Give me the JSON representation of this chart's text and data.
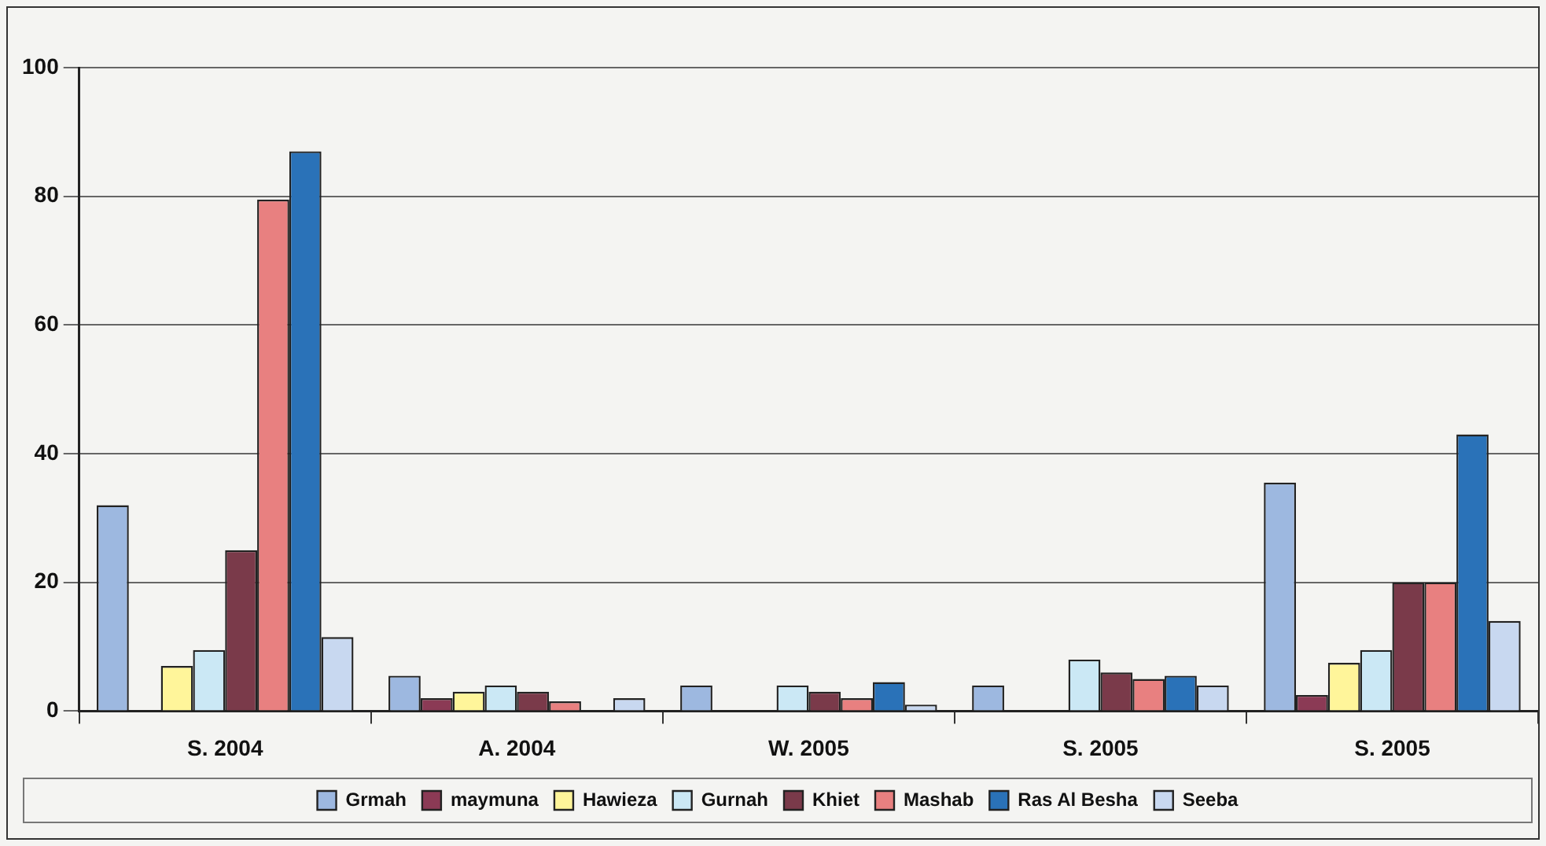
{
  "chart_data": {
    "type": "bar",
    "categories": [
      "S. 2004",
      "A. 2004",
      "W. 2005",
      "S. 2005",
      "S. 2005"
    ],
    "series": [
      {
        "name": "Grmah",
        "color": "#9db8e0",
        "values": [
          32,
          5.5,
          4,
          4,
          35.5
        ]
      },
      {
        "name": "maymuna",
        "color": "#8b3a55",
        "values": [
          0,
          2,
          0,
          0,
          2.5
        ]
      },
      {
        "name": "Hawieza",
        "color": "#fff59a",
        "values": [
          7,
          3,
          0,
          0,
          7.5
        ]
      },
      {
        "name": "Gurnah",
        "color": "#cbe8f5",
        "values": [
          9.5,
          4,
          4,
          8,
          9.5
        ]
      },
      {
        "name": "Khiet",
        "color": "#7a3a4a",
        "values": [
          25,
          3,
          3,
          6,
          20
        ]
      },
      {
        "name": "Mashab",
        "color": "#e88080",
        "values": [
          79.5,
          1.5,
          2,
          5,
          20
        ]
      },
      {
        "name": "Ras Al Besha",
        "color": "#2a72b8",
        "values": [
          87,
          0,
          4.5,
          5.5,
          43
        ]
      },
      {
        "name": "Seeba",
        "color": "#c8d8f0",
        "values": [
          11.5,
          2,
          1,
          4,
          14
        ]
      }
    ],
    "ylim": [
      0,
      100
    ],
    "yticks": [
      0,
      20,
      40,
      60,
      80,
      100
    ],
    "grid": "y",
    "legend": "bottom"
  }
}
